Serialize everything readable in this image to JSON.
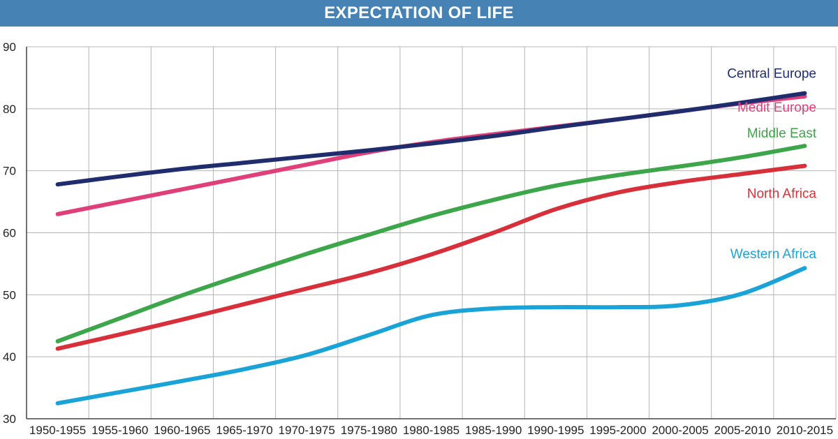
{
  "title": "EXPECTATION OF LIFE",
  "colors": {
    "header_bg": "#4682b4",
    "grid": "#b5b5b5",
    "axis": "#444444",
    "background": "#ffffff"
  },
  "chart_data": {
    "type": "line",
    "title": "EXPECTATION OF LIFE",
    "xlabel": "",
    "ylabel": "",
    "ylim": [
      30,
      90
    ],
    "yticks": [
      30,
      40,
      50,
      60,
      70,
      80,
      90
    ],
    "grid": true,
    "legend": "inline labels at right end of lines",
    "categories": [
      "1950-1955",
      "1955-1960",
      "1960-1965",
      "1965-1970",
      "1970-1975",
      "1975-1980",
      "1980-1985",
      "1985-1990",
      "1990-1995",
      "1995-2000",
      "2000-2005",
      "2005-2010",
      "2010-2015"
    ],
    "series": [
      {
        "name": "Central Europe",
        "color": "#1f2d6e",
        "values": [
          67.8,
          69.1,
          70.3,
          71.3,
          72.3,
          73.3,
          74.4,
          75.6,
          77.0,
          78.3,
          79.6,
          81.0,
          82.5
        ]
      },
      {
        "name": "Medit Europe",
        "color": "#e0407a",
        "values": [
          63.0,
          65.0,
          67.0,
          69.0,
          71.0,
          73.0,
          74.6,
          75.9,
          77.1,
          78.3,
          79.6,
          80.9,
          82.0
        ]
      },
      {
        "name": "Middle East",
        "color": "#3ea64a",
        "values": [
          42.5,
          46.2,
          49.9,
          53.3,
          56.6,
          59.7,
          62.7,
          65.3,
          67.6,
          69.3,
          70.7,
          72.2,
          74.0
        ]
      },
      {
        "name": "North Africa",
        "color": "#d8303a",
        "values": [
          41.3,
          43.6,
          46.0,
          48.5,
          51.0,
          53.5,
          56.5,
          60.0,
          63.8,
          66.5,
          68.2,
          69.5,
          70.8
        ]
      },
      {
        "name": "Western Africa",
        "color": "#1aa3d6",
        "values": [
          32.5,
          34.3,
          36.1,
          38.0,
          40.3,
          43.5,
          46.7,
          47.8,
          48.0,
          48.0,
          48.3,
          50.2,
          54.3
        ]
      }
    ]
  }
}
